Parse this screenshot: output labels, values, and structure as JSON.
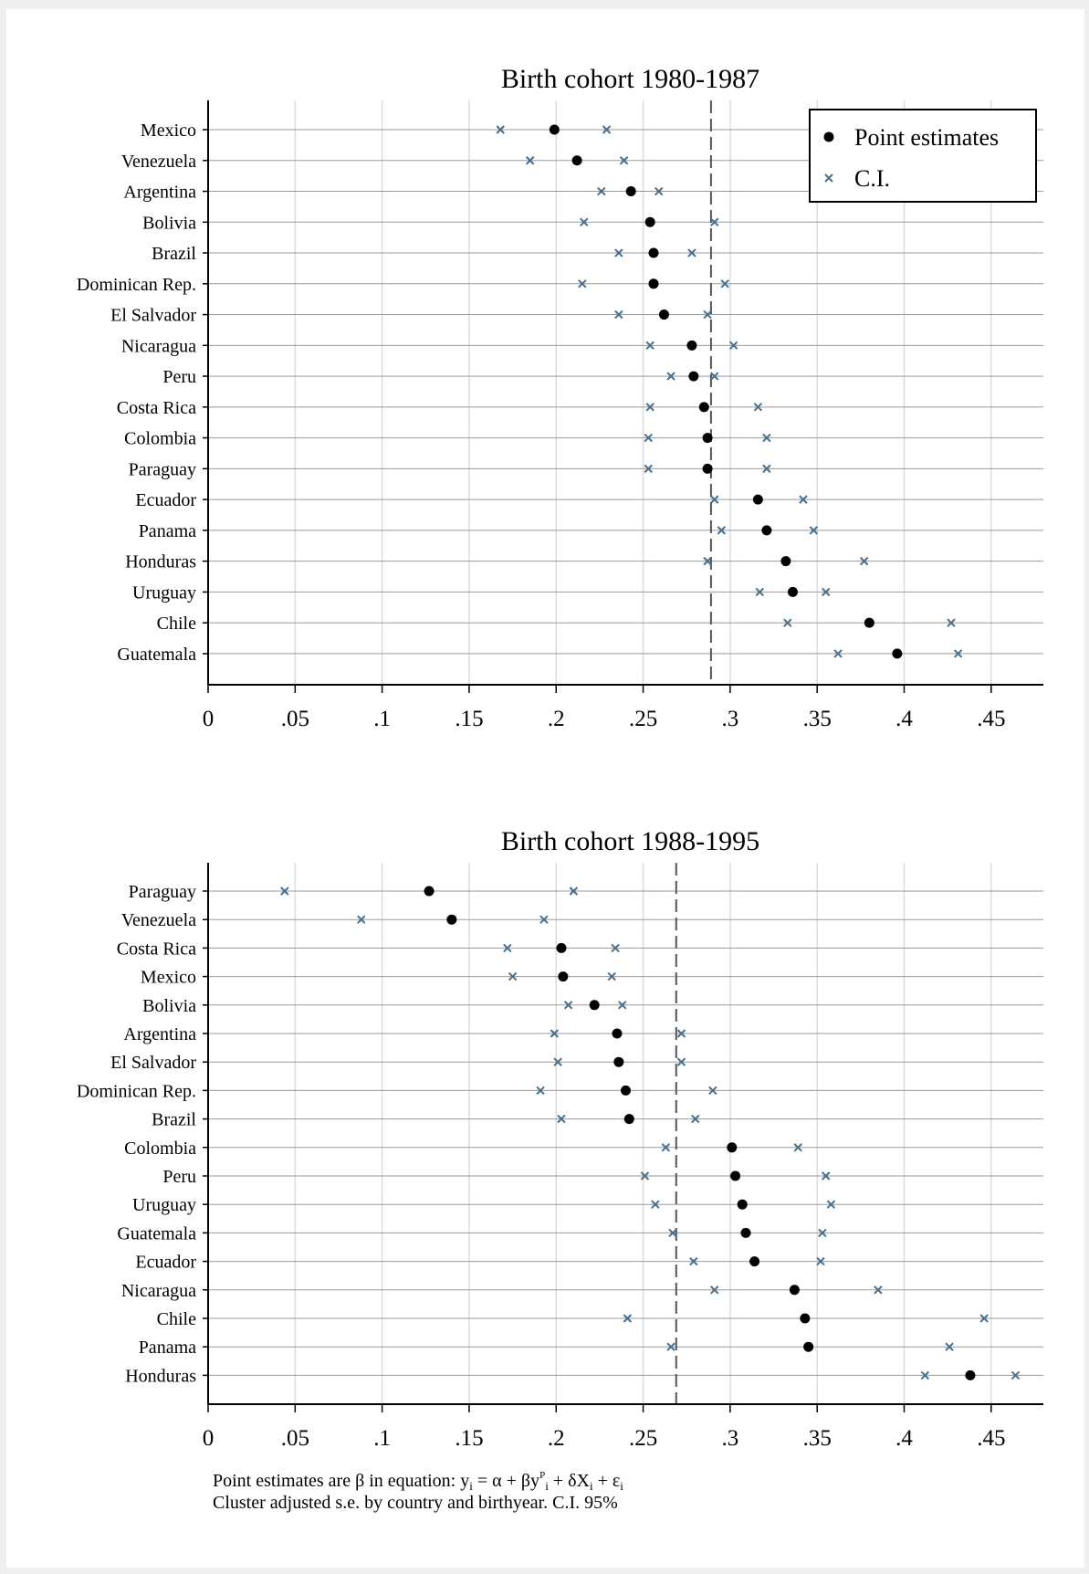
{
  "chart_data": [
    {
      "type": "scatter",
      "title": "Birth cohort 1980-1987",
      "xlim": [
        0,
        0.48
      ],
      "xticks": [
        0,
        0.05,
        0.1,
        0.15,
        0.2,
        0.25,
        0.3,
        0.35,
        0.4,
        0.45
      ],
      "xtick_labels": [
        "0",
        ".05",
        ".1",
        ".15",
        ".2",
        ".25",
        ".3",
        ".35",
        ".4",
        ".45"
      ],
      "reference_line": 0.289,
      "grid": true,
      "legend": {
        "placement": "top-right",
        "entries": [
          "Point estimates",
          "C.I."
        ]
      },
      "categories": [
        "Mexico",
        "Venezuela",
        "Argentina",
        "Bolivia",
        "Brazil",
        "Dominican Rep.",
        "El Salvador",
        "Nicaragua",
        "Peru",
        "Costa Rica",
        "Colombia",
        "Paraguay",
        "Ecuador",
        "Panama",
        "Honduras",
        "Uruguay",
        "Chile",
        "Guatemala"
      ],
      "series": [
        {
          "name": "Point estimates",
          "values": [
            0.199,
            0.212,
            0.243,
            0.254,
            0.256,
            0.256,
            0.262,
            0.278,
            0.279,
            0.285,
            0.287,
            0.287,
            0.316,
            0.321,
            0.332,
            0.336,
            0.38,
            0.396
          ]
        },
        {
          "name": "C.I.",
          "lower": [
            0.168,
            0.185,
            0.226,
            0.216,
            0.236,
            0.215,
            0.236,
            0.254,
            0.266,
            0.254,
            0.253,
            0.253,
            0.291,
            0.295,
            0.287,
            0.317,
            0.333,
            0.362
          ],
          "upper": [
            0.229,
            0.239,
            0.259,
            0.291,
            0.278,
            0.297,
            0.287,
            0.302,
            0.291,
            0.316,
            0.321,
            0.321,
            0.342,
            0.348,
            0.377,
            0.355,
            0.427,
            0.431
          ]
        }
      ]
    },
    {
      "type": "scatter",
      "title": "Birth cohort 1988-1995",
      "xlim": [
        0,
        0.48
      ],
      "xticks": [
        0,
        0.05,
        0.1,
        0.15,
        0.2,
        0.25,
        0.3,
        0.35,
        0.4,
        0.45
      ],
      "xtick_labels": [
        "0",
        ".05",
        ".1",
        ".15",
        ".2",
        ".25",
        ".3",
        ".35",
        ".4",
        ".45"
      ],
      "reference_line": 0.269,
      "grid": true,
      "categories": [
        "Paraguay",
        "Venezuela",
        "Costa Rica",
        "Mexico",
        "Bolivia",
        "Argentina",
        "El Salvador",
        "Dominican Rep.",
        "Brazil",
        "Colombia",
        "Peru",
        "Uruguay",
        "Guatemala",
        "Ecuador",
        "Nicaragua",
        "Chile",
        "Panama",
        "Honduras"
      ],
      "series": [
        {
          "name": "Point estimates",
          "values": [
            0.127,
            0.14,
            0.203,
            0.204,
            0.222,
            0.235,
            0.236,
            0.24,
            0.242,
            0.301,
            0.303,
            0.307,
            0.309,
            0.314,
            0.337,
            0.343,
            0.345,
            0.438
          ]
        },
        {
          "name": "C.I.",
          "lower": [
            0.044,
            0.088,
            0.172,
            0.175,
            0.207,
            0.199,
            0.201,
            0.191,
            0.203,
            0.263,
            0.251,
            0.257,
            0.267,
            0.279,
            0.291,
            0.241,
            0.266,
            0.412
          ],
          "upper": [
            0.21,
            0.193,
            0.234,
            0.232,
            0.238,
            0.272,
            0.272,
            0.29,
            0.28,
            0.339,
            0.355,
            0.358,
            0.353,
            0.352,
            0.385,
            0.446,
            0.426,
            0.464
          ]
        }
      ]
    }
  ],
  "note": {
    "line1_prefix": "Point estimates are β in equation: y",
    "line1_sub_i1": "i",
    "line1_mid": " = α + βy",
    "line1_sup_p": "P",
    "line1_sub_i2": "i",
    "line1_mid2": " + δX",
    "line1_sub_i3": "i",
    "line1_mid3": " + ε",
    "line1_sub_i4": "i",
    "line2": "Cluster adjusted s.e. by country and birthyear. C.I. 95%"
  },
  "colors": {
    "point": "#000000",
    "ci": "#4a6f8a",
    "grid": "#dcdcdc",
    "rowline": "#9a9a9a",
    "refline": "#555555"
  }
}
